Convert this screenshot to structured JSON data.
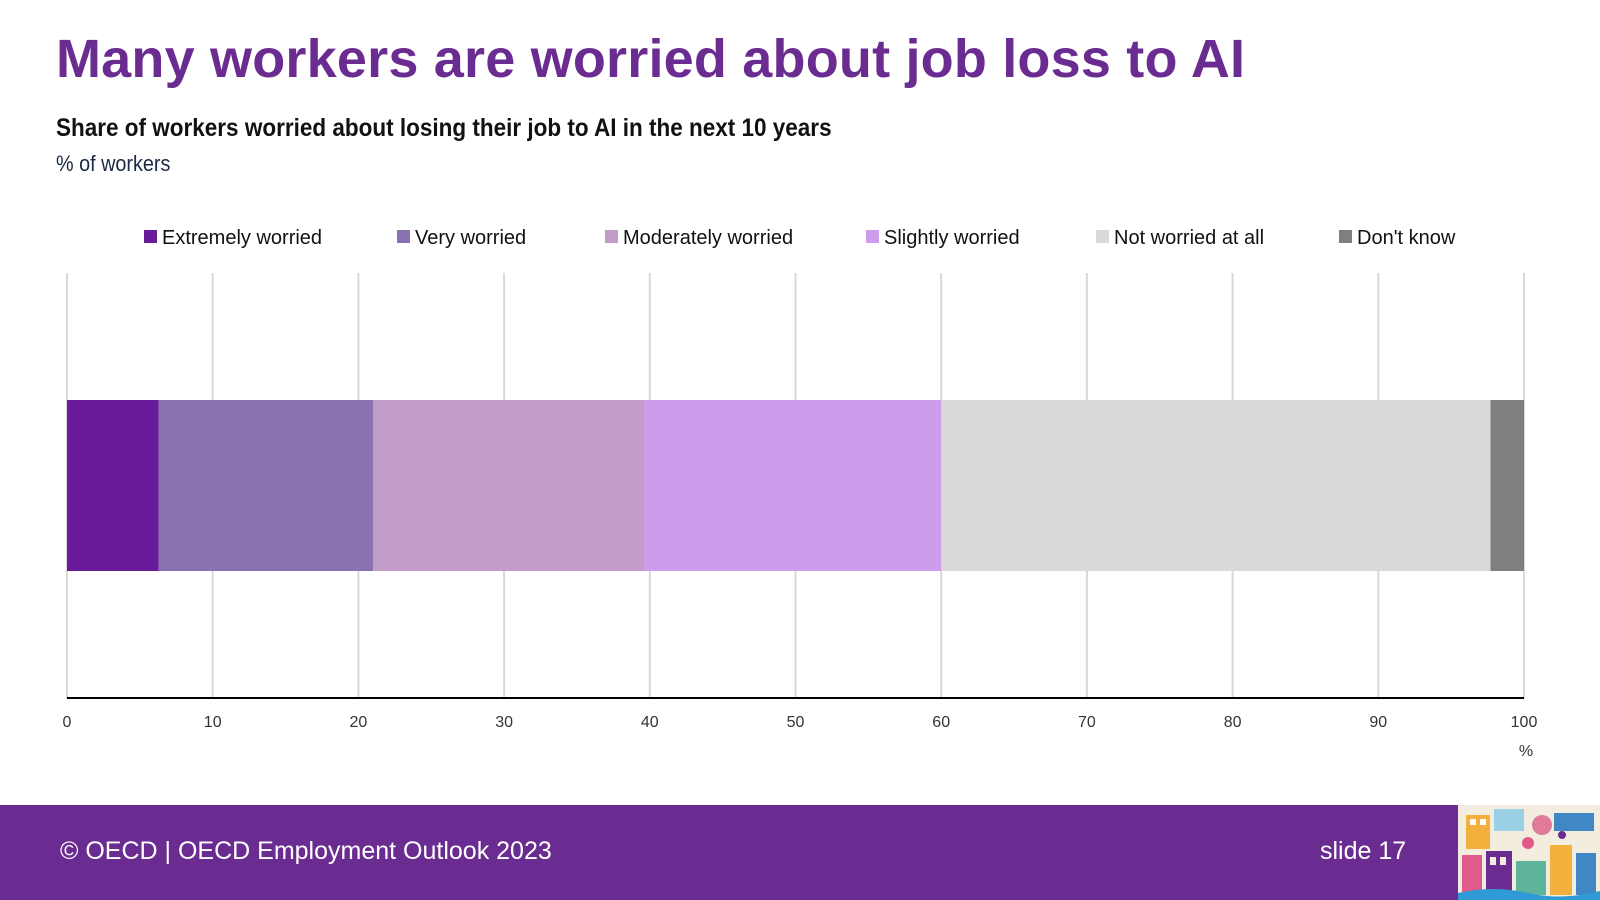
{
  "slide": {
    "title": "Many workers are worried about job loss to AI",
    "footer": "© OECD | OECD Employment Outlook 2023",
    "slide_number": "slide 17"
  },
  "chart_data": {
    "type": "bar",
    "orientation": "horizontal",
    "stacked": true,
    "title": "Share of workers worried about losing their job to AI in the next 10 years",
    "subtitle": "% of workers",
    "xlabel": "%",
    "ylabel": "",
    "xlim": [
      0,
      100
    ],
    "xticks": [
      0,
      10,
      20,
      30,
      40,
      50,
      60,
      70,
      80,
      90,
      100
    ],
    "grid": true,
    "legend_position": "top",
    "categories": [
      ""
    ],
    "series": [
      {
        "name": "Extremely worried",
        "values": [
          6.3
        ],
        "color": "#6a1b9a"
      },
      {
        "name": "Very worried",
        "values": [
          14.7
        ],
        "color": "#8a71b0"
      },
      {
        "name": "Moderately worried",
        "values": [
          18.6
        ],
        "color": "#c09cc6"
      },
      {
        "name": "Slightly worried",
        "values": [
          20.4
        ],
        "color": "#ce9ced"
      },
      {
        "name": "Not worried at all",
        "values": [
          37.7
        ],
        "color": "#d9d9d9"
      },
      {
        "name": "Don't know",
        "values": [
          2.3
        ],
        "color": "#7f7f7f"
      }
    ]
  }
}
